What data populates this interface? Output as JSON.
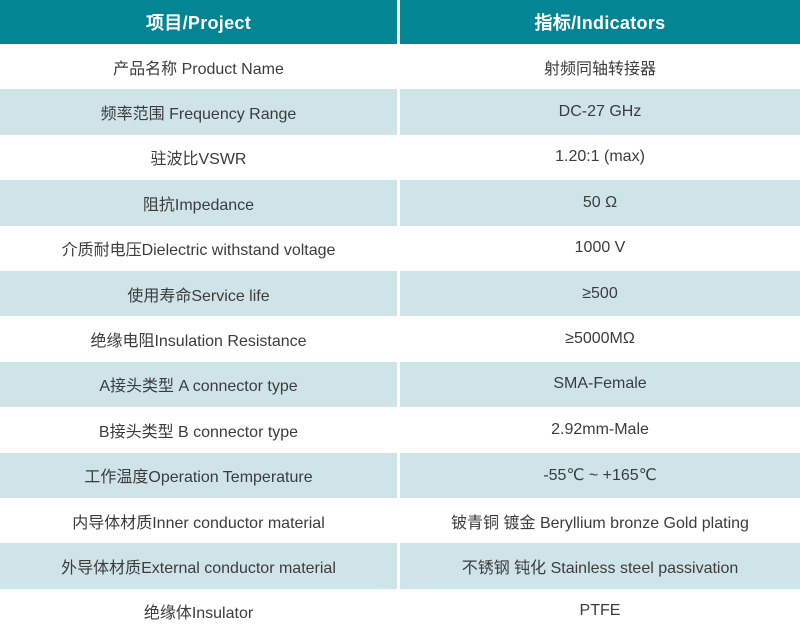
{
  "colors": {
    "header_bg": "#038593",
    "header_text": "#ffffff",
    "row_white": "#ffffff",
    "row_tint": "#cfe4e8",
    "body_text": "#3c3c3c",
    "divider": "#ffffff"
  },
  "table": {
    "header": {
      "project": "项目/Project",
      "indicators": "指标/Indicators"
    },
    "rows": [
      {
        "project": "产品名称 Product Name",
        "indicator": "射频同轴转接器"
      },
      {
        "project": "频率范围 Frequency Range",
        "indicator": "DC-27 GHz"
      },
      {
        "project": "驻波比VSWR",
        "indicator": "1.20:1 (max)"
      },
      {
        "project": "阻抗Impedance",
        "indicator": "50 Ω"
      },
      {
        "project": "介质耐电压Dielectric withstand voltage",
        "indicator": "1000 V"
      },
      {
        "project": "使用寿命Service life",
        "indicator": "≥500"
      },
      {
        "project": "绝缘电阻Insulation Resistance",
        "indicator": "≥5000MΩ"
      },
      {
        "project": "A接头类型 A connector type",
        "indicator": "SMA-Female"
      },
      {
        "project": "B接头类型 B connector type",
        "indicator": "2.92mm-Male"
      },
      {
        "project": "工作温度Operation Temperature",
        "indicator": "-55℃ ~ +165℃"
      },
      {
        "project": "内导体材质Inner conductor material",
        "indicator": "铍青铜 镀金 Beryllium bronze Gold plating"
      },
      {
        "project": "外导体材质External conductor material",
        "indicator": "不锈钢 钝化 Stainless steel passivation"
      },
      {
        "project": "绝缘体Insulator",
        "indicator": "PTFE"
      }
    ]
  }
}
